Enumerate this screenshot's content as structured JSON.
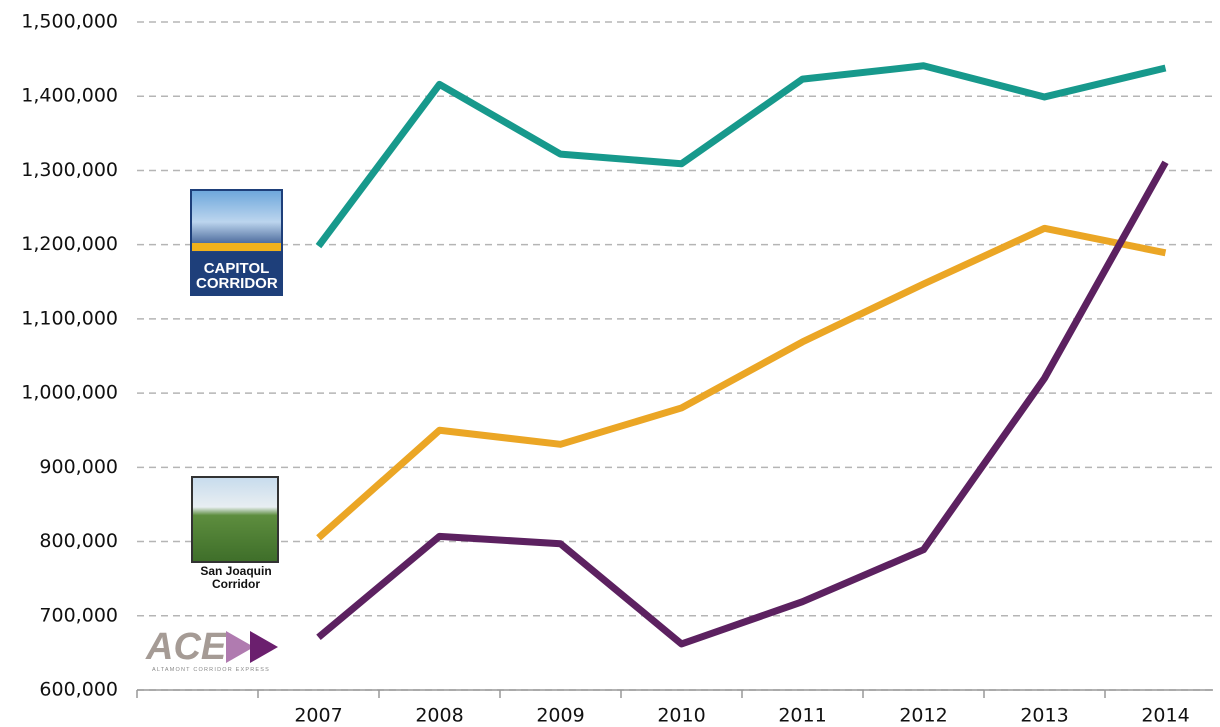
{
  "chart_data": {
    "type": "line",
    "categories": [
      null,
      "2007",
      "2008",
      "2009",
      "2010",
      "2011",
      "2012",
      "2013",
      "2014"
    ],
    "series": [
      {
        "name": "CAPITOL CORRIDOR",
        "color": "#17998c",
        "values": [
          null,
          1198000,
          1416000,
          1322000,
          1309000,
          1423000,
          1441000,
          1399000,
          1438000
        ]
      },
      {
        "name": "San Joaquin Corridor",
        "color": "#eba625",
        "values": [
          null,
          805000,
          950000,
          931000,
          980000,
          1069000,
          1147000,
          1222000,
          1189000
        ]
      },
      {
        "name": "ACE",
        "logo_text": "ALTAMONT CORRIDOR EXPRESS",
        "color": "#5c2160",
        "values": [
          null,
          671000,
          807000,
          797000,
          662000,
          719000,
          789000,
          1020000,
          1311000
        ]
      }
    ],
    "ylim": [
      600000,
      1500000
    ],
    "yticks": [
      {
        "value": 600000,
        "label": "600,000"
      },
      {
        "value": 700000,
        "label": "700,000"
      },
      {
        "value": 800000,
        "label": "800,000"
      },
      {
        "value": 900000,
        "label": "900,000"
      },
      {
        "value": 1000000,
        "label": "1,000,000"
      },
      {
        "value": 1100000,
        "label": "1,100,000"
      },
      {
        "value": 1200000,
        "label": "1,200,000"
      },
      {
        "value": 1300000,
        "label": "1,300,000"
      },
      {
        "value": 1400000,
        "label": "1,400,000"
      },
      {
        "value": 1500000,
        "label": "1,500,000"
      }
    ],
    "grid": true
  }
}
